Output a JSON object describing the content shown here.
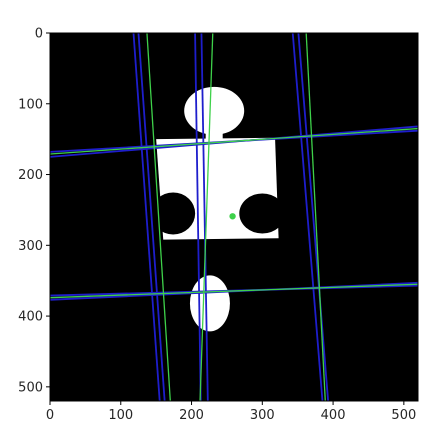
{
  "chart_data": {
    "type": "image",
    "title": "",
    "xlabel": "",
    "ylabel": "",
    "xlim": [
      0,
      520
    ],
    "ylim": [
      520,
      0
    ],
    "x_ticks": [
      0,
      100,
      200,
      300,
      400,
      500
    ],
    "y_ticks": [
      0,
      100,
      200,
      300,
      400,
      500
    ],
    "grid": false,
    "background_color": "#000000",
    "piece_color": "#ffffff",
    "blue_line_color": "#1e1ecc",
    "green_line_color": "#3ed14a",
    "center_point": {
      "x": 258,
      "y": 259,
      "color": "#3ed14a"
    },
    "blue_lines": [
      [
        [
          118,
          0
        ],
        [
          155,
          520
        ]
      ],
      [
        [
          125,
          0
        ],
        [
          162,
          520
        ]
      ],
      [
        [
          205,
          0
        ],
        [
          213,
          520
        ]
      ],
      [
        [
          214,
          0
        ],
        [
          223,
          520
        ]
      ],
      [
        [
          343,
          0
        ],
        [
          385,
          520
        ]
      ],
      [
        [
          351,
          0
        ],
        [
          393,
          520
        ]
      ],
      [
        [
          0,
          175
        ],
        [
          520,
          132
        ]
      ],
      [
        [
          0,
          168
        ],
        [
          520,
          138
        ]
      ],
      [
        [
          0,
          377
        ],
        [
          520,
          353
        ]
      ],
      [
        [
          0,
          371
        ],
        [
          520,
          357
        ]
      ]
    ],
    "green_lines": [
      [
        [
          137,
          0
        ],
        [
          170,
          520
        ]
      ],
      [
        [
          230,
          0
        ],
        [
          212,
          520
        ]
      ],
      [
        [
          362,
          0
        ],
        [
          389,
          520
        ]
      ],
      [
        [
          0,
          171
        ],
        [
          520,
          135
        ]
      ],
      [
        [
          0,
          374
        ],
        [
          520,
          355
        ]
      ]
    ]
  }
}
